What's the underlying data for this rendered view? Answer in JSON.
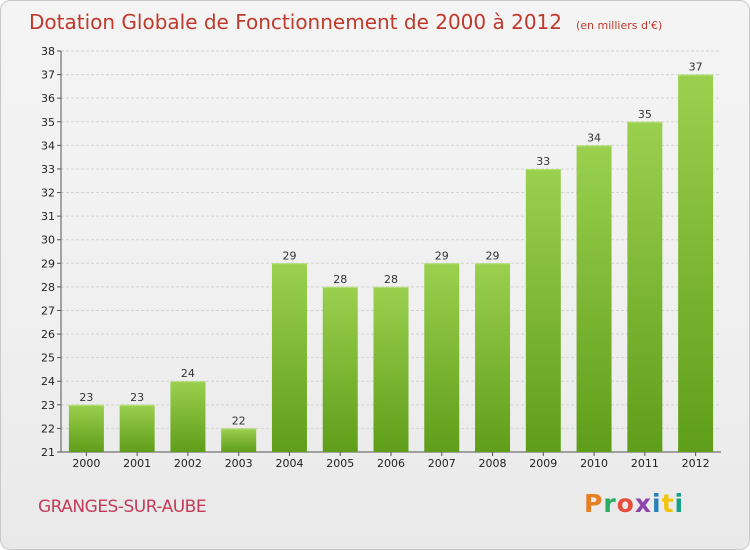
{
  "header": {
    "title": "Dotation Globale de Fonctionnement de 2000 à 2012",
    "unit": "(en milliers d'€)"
  },
  "footer": {
    "commune": "GRANGES-SUR-AUBE",
    "logo_text": "Proxiti",
    "logo_colors": [
      "#e67e22",
      "#27ae60",
      "#e74c3c",
      "#8e44ad",
      "#2980b9",
      "#f1c40f",
      "#16a085"
    ]
  },
  "chart_data": {
    "type": "bar",
    "title": "Dotation Globale de Fonctionnement de 2000 à 2012",
    "subtitle": "(en milliers d'€)",
    "xlabel": "",
    "ylabel": "",
    "categories": [
      "2000",
      "2001",
      "2002",
      "2003",
      "2004",
      "2005",
      "2006",
      "2007",
      "2008",
      "2009",
      "2010",
      "2011",
      "2012"
    ],
    "values": [
      23,
      23,
      24,
      22,
      29,
      28,
      28,
      29,
      29,
      33,
      34,
      35,
      37
    ],
    "ylim": [
      21,
      38
    ],
    "yticks": [
      21,
      22,
      23,
      24,
      25,
      26,
      27,
      28,
      29,
      30,
      31,
      32,
      33,
      34,
      35,
      36,
      37,
      38
    ],
    "grid": true,
    "bar_color": "#8cc63f",
    "legend": "none"
  }
}
